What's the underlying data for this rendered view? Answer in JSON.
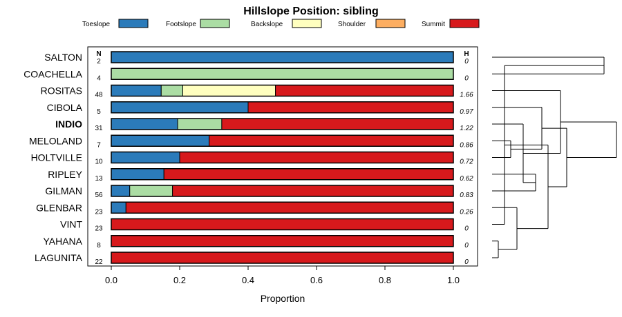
{
  "chart_data": {
    "type": "bar",
    "orientation": "horizontal",
    "stacked": true,
    "title": "Hillslope Position: sibling",
    "xlabel": "Proportion",
    "ylabel": "",
    "xlim": [
      0,
      1
    ],
    "x_ticks": [
      "0.0",
      "0.2",
      "0.4",
      "0.6",
      "0.8",
      "1.0"
    ],
    "n_header": "N",
    "h_header": "H",
    "legend": [
      {
        "name": "Toeslope",
        "color": "#2b7bba"
      },
      {
        "name": "Footslope",
        "color": "#abdda4"
      },
      {
        "name": "Backslope",
        "color": "#ffffbf"
      },
      {
        "name": "Shoulder",
        "color": "#fdae61"
      },
      {
        "name": "Summit",
        "color": "#d7191c"
      }
    ],
    "categories": [
      "SALTON",
      "COACHELLA",
      "ROSITAS",
      "CIBOLA",
      "INDIO",
      "MELOLAND",
      "HOLTVILLE",
      "RIPLEY",
      "GILMAN",
      "GLENBAR",
      "VINT",
      "YAHANA",
      "LAGUNITA"
    ],
    "highlight": "INDIO",
    "n": [
      "2",
      "4",
      "48",
      "5",
      "31",
      "7",
      "10",
      "13",
      "56",
      "23",
      "23",
      "8",
      "22"
    ],
    "h": [
      "0",
      "0",
      "1.66",
      "0.97",
      "1.22",
      "0.86",
      "0.72",
      "0.62",
      "0.83",
      "0.26",
      "0",
      "0",
      "0"
    ],
    "series": [
      {
        "name": "Toeslope",
        "values": [
          1.0,
          0.0,
          0.146,
          0.4,
          0.194,
          0.286,
          0.2,
          0.154,
          0.054,
          0.043,
          0.0,
          0.0,
          0.0
        ]
      },
      {
        "name": "Footslope",
        "values": [
          0.0,
          1.0,
          0.063,
          0.0,
          0.129,
          0.0,
          0.0,
          0.0,
          0.125,
          0.0,
          0.0,
          0.0,
          0.0
        ]
      },
      {
        "name": "Backslope",
        "values": [
          0.0,
          0.0,
          0.271,
          0.0,
          0.0,
          0.0,
          0.0,
          0.0,
          0.0,
          0.0,
          0.0,
          0.0,
          0.0
        ]
      },
      {
        "name": "Shoulder",
        "values": [
          0.0,
          0.0,
          0.0,
          0.0,
          0.0,
          0.0,
          0.0,
          0.0,
          0.0,
          0.0,
          0.0,
          0.0,
          0.0
        ]
      },
      {
        "name": "Summit",
        "values": [
          0.0,
          0.0,
          0.52,
          0.6,
          0.677,
          0.714,
          0.8,
          0.846,
          0.821,
          0.957,
          1.0,
          1.0,
          1.0
        ]
      }
    ],
    "dendrogram": {
      "description": "hierarchical clustering of profiles",
      "merges": [
        [
          0,
          1,
          0.9
        ],
        [
          11,
          12,
          0.05
        ],
        [
          10,
          13,
          0.1
        ],
        [
          9,
          14,
          0.2
        ],
        [
          7,
          8,
          0.35
        ],
        [
          5,
          6,
          0.15
        ],
        [
          4,
          17,
          0.25
        ],
        [
          3,
          18,
          0.4
        ],
        [
          16,
          15,
          0.45
        ],
        [
          2,
          19,
          0.55
        ],
        [
          21,
          20,
          0.6
        ],
        [
          22,
          23,
          1.0
        ]
      ]
    }
  }
}
